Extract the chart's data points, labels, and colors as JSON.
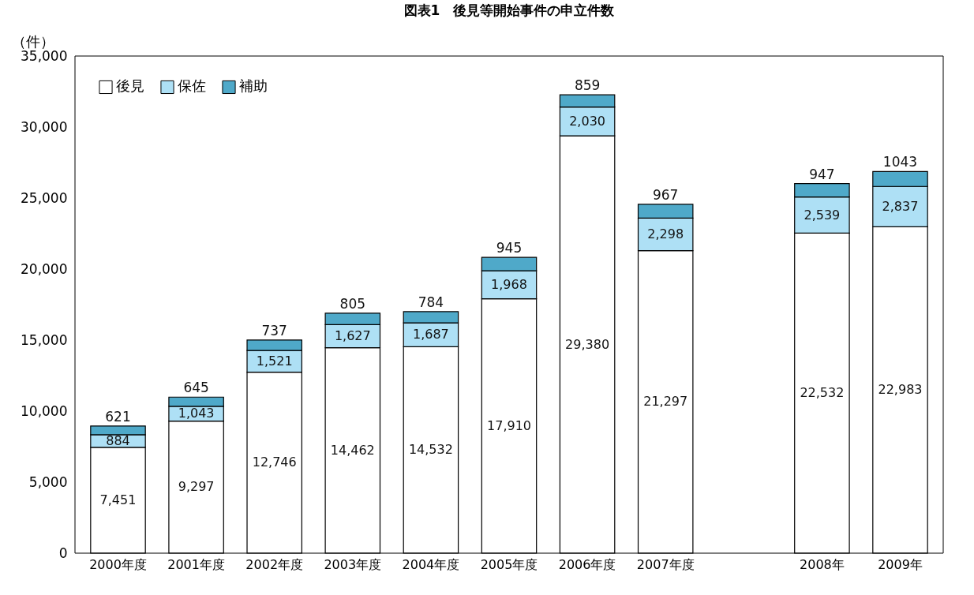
{
  "chart_data": {
    "type": "bar",
    "title": "図表1　後見等開始事件の申立件数",
    "ylabel": "（件）",
    "stacked": true,
    "categories": [
      "2000年度",
      "2001年度",
      "2002年度",
      "2003年度",
      "2004年度",
      "2005年度",
      "2006年度",
      "2007年度",
      null,
      "2008年",
      "2009年"
    ],
    "series": [
      {
        "name": "後見",
        "color": "#ffffff",
        "values": [
          7451,
          9297,
          12746,
          14462,
          14532,
          17910,
          29380,
          21297,
          null,
          22532,
          22983
        ],
        "value_labels": [
          "7,451",
          "9,297",
          "12,746",
          "14,462",
          "14,532",
          "17,910",
          "29,380",
          "21,297",
          null,
          "22,532",
          "22,983"
        ]
      },
      {
        "name": "保佐",
        "color": "#aee0f5",
        "values": [
          884,
          1043,
          1521,
          1627,
          1687,
          1968,
          2030,
          2298,
          null,
          2539,
          2837
        ],
        "value_labels": [
          "884",
          "1,043",
          "1,521",
          "1,627",
          "1,687",
          "1,968",
          "2,030",
          "2,298",
          null,
          "2,539",
          "2,837"
        ]
      },
      {
        "name": "補助",
        "color": "#4fa9c9",
        "values": [
          621,
          645,
          737,
          805,
          784,
          945,
          859,
          967,
          null,
          947,
          1043
        ],
        "value_labels": [
          "621",
          "645",
          "737",
          "805",
          "784",
          "945",
          "859",
          "967",
          null,
          "947",
          "1043"
        ]
      }
    ],
    "ylim": [
      0,
      35000
    ],
    "yticks": [
      {
        "value": 0,
        "label": "0"
      },
      {
        "value": 5000,
        "label": "5,000"
      },
      {
        "value": 10000,
        "label": "10,000"
      },
      {
        "value": 15000,
        "label": "15,000"
      },
      {
        "value": 20000,
        "label": "20,000"
      },
      {
        "value": 25000,
        "label": "25,000"
      },
      {
        "value": 30000,
        "label": "30,000"
      },
      {
        "value": 35000,
        "label": "35,000"
      }
    ],
    "grid": false,
    "legend": "top left"
  }
}
